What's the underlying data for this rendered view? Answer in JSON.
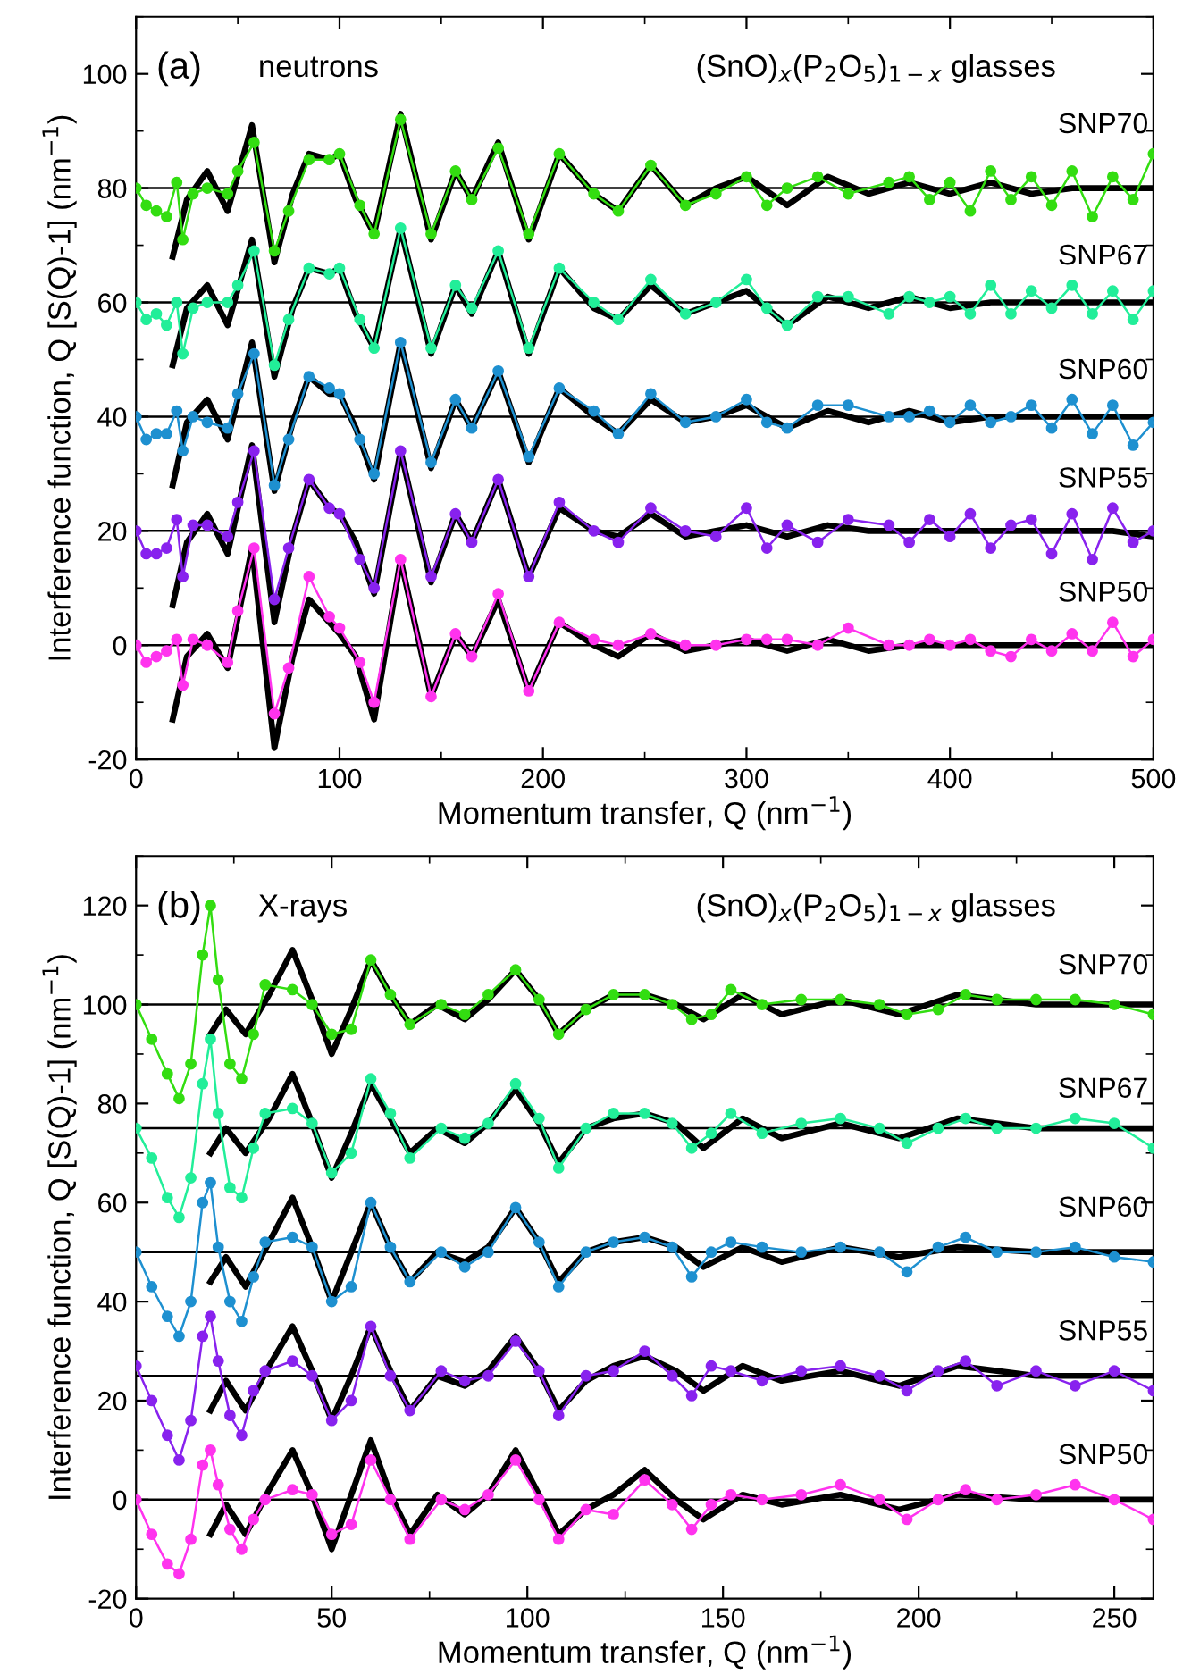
{
  "chart_data": [
    {
      "type": "line",
      "xlabel": "Momentum transfer, Q (nm$^{−1}$)",
      "ylabel": "Interference function, Q [S(Q)-1] (nm$^{−1}$)",
      "annotations": [
        "(a)",
        "neutrons",
        "(SnO)$_{x}$(P$_{2}$O$_{5}$)$_{1−x}$ glasses"
      ],
      "xlim": [
        0,
        500
      ],
      "ylim": [
        -20,
        110
      ],
      "xticks": [
        0,
        100,
        200,
        300,
        400,
        500
      ],
      "yticks": [
        -20,
        0,
        20,
        40,
        60,
        80,
        100
      ],
      "grid": false,
      "legend": false,
      "ref_lines": [
        {
          "axis": "y",
          "value": 80,
          "color": "#000000"
        },
        {
          "axis": "y",
          "value": 60,
          "color": "#000000"
        },
        {
          "axis": "y",
          "value": 40,
          "color": "#000000"
        },
        {
          "axis": "y",
          "value": 20,
          "color": "#000000"
        },
        {
          "axis": "y",
          "value": 0,
          "color": "#000000"
        }
      ],
      "x": [
        0,
        5,
        10,
        15,
        20,
        23,
        28,
        35,
        45,
        50,
        58,
        68,
        75,
        85,
        95,
        100,
        110,
        117,
        130,
        145,
        157,
        165,
        178,
        193,
        208,
        225,
        237,
        253,
        270,
        285,
        300,
        310,
        320,
        335,
        350,
        370,
        380,
        390,
        400,
        410,
        420,
        430,
        440,
        450,
        460,
        470,
        480,
        490,
        500
      ],
      "series": [
        {
          "name": "SNP70",
          "color": "#33dd11",
          "marker": "circle",
          "values": [
            80,
            77,
            76,
            75,
            81,
            71,
            79,
            80,
            79,
            83,
            88,
            69,
            76,
            85,
            85,
            86,
            77,
            72,
            92,
            72,
            83,
            78,
            87,
            72,
            86,
            79,
            76,
            84,
            77,
            79,
            82,
            77,
            80,
            82,
            79,
            81,
            82,
            78,
            81,
            76,
            83,
            78,
            82,
            77,
            83,
            75,
            82,
            78,
            86
          ]
        },
        {
          "name": "SNP67",
          "color": "#22ee99",
          "marker": "circle",
          "values": [
            60,
            57,
            58,
            56,
            60,
            51,
            59,
            60,
            60,
            63,
            69,
            49,
            57,
            66,
            65,
            66,
            57,
            52,
            73,
            52,
            63,
            59,
            69,
            52,
            66,
            60,
            57,
            64,
            58,
            60,
            64,
            59,
            56,
            61,
            61,
            58,
            61,
            60,
            61,
            58,
            63,
            58,
            62,
            59,
            63,
            58,
            62,
            57,
            62
          ]
        },
        {
          "name": "SNP60",
          "color": "#1e90d0",
          "marker": "circle",
          "values": [
            40,
            36,
            37,
            37,
            41,
            34,
            40,
            39,
            38,
            44,
            51,
            28,
            36,
            47,
            45,
            44,
            36,
            30,
            53,
            32,
            43,
            38,
            48,
            33,
            45,
            41,
            37,
            44,
            39,
            40,
            43,
            39,
            38,
            42,
            42,
            40,
            40,
            41,
            39,
            42,
            39,
            40,
            42,
            38,
            43,
            37,
            42,
            35,
            39
          ]
        },
        {
          "name": "SNP55",
          "color": "#8822ee",
          "marker": "circle",
          "values": [
            20,
            16,
            16,
            17,
            22,
            12,
            21,
            21,
            19,
            25,
            34,
            8,
            17,
            29,
            24,
            23,
            15,
            10,
            34,
            12,
            23,
            18,
            29,
            12,
            25,
            20,
            18,
            24,
            20,
            19,
            24,
            17,
            21,
            18,
            22,
            21,
            18,
            22,
            19,
            23,
            17,
            21,
            22,
            16,
            23,
            15,
            24,
            18,
            20
          ]
        },
        {
          "name": "SNP50",
          "color": "#ff33ee",
          "marker": "circle",
          "values": [
            0,
            -3,
            -2,
            -1,
            1,
            -7,
            1,
            0,
            -3,
            6,
            17,
            -12,
            -4,
            12,
            5,
            3,
            -3,
            -10,
            15,
            -9,
            2,
            -2,
            9,
            -8,
            4,
            1,
            0,
            2,
            0,
            0,
            1,
            1,
            1,
            0,
            3,
            0,
            0,
            1,
            0,
            1,
            -1,
            -2,
            1,
            -1,
            2,
            -1,
            4,
            -2,
            1
          ]
        },
        {
          "color": "#000000",
          "marker": "none",
          "x": [
            18,
            25,
            35,
            45,
            57,
            68,
            77,
            85,
            95,
            100,
            108,
            117,
            130,
            145,
            157,
            165,
            178,
            193,
            208,
            225,
            237,
            253,
            270,
            285,
            300,
            320,
            340,
            360,
            380,
            400,
            420,
            440,
            460,
            480,
            500
          ],
          "values": [
            68,
            78,
            83,
            76,
            91,
            67,
            79,
            86,
            85,
            86,
            78,
            72,
            93,
            71,
            83,
            78,
            88,
            71,
            86,
            79,
            76,
            84,
            77,
            80,
            82,
            77,
            82,
            79,
            81,
            79,
            81,
            79,
            80,
            80,
            80
          ]
        },
        {
          "color": "#000000",
          "marker": "none",
          "x": [
            18,
            25,
            35,
            45,
            57,
            68,
            77,
            85,
            95,
            100,
            108,
            117,
            130,
            145,
            157,
            165,
            178,
            193,
            208,
            225,
            237,
            253,
            270,
            285,
            300,
            320,
            340,
            360,
            380,
            400,
            420,
            440,
            460,
            480,
            500
          ],
          "values": [
            49,
            59,
            63,
            56,
            71,
            47,
            59,
            66,
            65,
            66,
            58,
            52,
            73,
            51,
            63,
            58,
            69,
            51,
            66,
            59,
            57,
            63,
            58,
            60,
            62,
            56,
            61,
            59,
            61,
            59,
            60,
            60,
            60,
            60,
            60
          ]
        },
        {
          "color": "#000000",
          "marker": "none",
          "x": [
            18,
            25,
            35,
            45,
            57,
            68,
            77,
            85,
            95,
            100,
            108,
            117,
            130,
            145,
            157,
            165,
            178,
            193,
            208,
            225,
            237,
            253,
            270,
            285,
            300,
            320,
            340,
            360,
            380,
            400,
            420,
            440,
            460,
            480,
            500
          ],
          "values": [
            28,
            39,
            43,
            36,
            53,
            27,
            39,
            47,
            44,
            44,
            38,
            29,
            53,
            31,
            43,
            38,
            48,
            32,
            45,
            40,
            37,
            43,
            39,
            40,
            42,
            38,
            41,
            39,
            41,
            39,
            40,
            40,
            40,
            40,
            40
          ]
        },
        {
          "color": "#000000",
          "marker": "none",
          "x": [
            18,
            25,
            35,
            45,
            57,
            68,
            77,
            85,
            95,
            100,
            108,
            117,
            130,
            145,
            157,
            165,
            178,
            193,
            208,
            225,
            237,
            253,
            270,
            285,
            300,
            320,
            340,
            360,
            380,
            400,
            420,
            440,
            460,
            480,
            500
          ],
          "values": [
            7,
            18,
            23,
            16,
            35,
            4,
            19,
            29,
            24,
            23,
            18,
            9,
            34,
            11,
            23,
            18,
            29,
            12,
            24,
            20,
            19,
            23,
            19,
            20,
            21,
            19,
            21,
            20,
            20,
            20,
            20,
            20,
            20,
            20,
            19
          ]
        },
        {
          "color": "#000000",
          "marker": "none",
          "x": [
            18,
            25,
            35,
            45,
            57,
            68,
            77,
            85,
            95,
            100,
            108,
            117,
            130,
            145,
            157,
            165,
            178,
            193,
            208,
            225,
            237,
            253,
            270,
            285,
            300,
            320,
            340,
            360,
            380,
            400,
            420,
            440,
            460,
            480,
            500
          ],
          "values": [
            -13,
            -2,
            2,
            -4,
            17,
            -18,
            -2,
            8,
            4,
            2,
            -2,
            -13,
            15,
            -9,
            2,
            -2,
            8,
            -8,
            4,
            0,
            -2,
            2,
            -1,
            0,
            1,
            -1,
            1,
            -1,
            0,
            0,
            0,
            0,
            0,
            0,
            0
          ]
        }
      ]
    },
    {
      "type": "line",
      "xlabel": "Momentum transfer, Q (nm$^{−1}$)",
      "ylabel": "Interference function, Q [S(Q)-1] (nm$^{−1}$)",
      "annotations": [
        "(b)",
        "X-rays",
        "(SnO)$_{x}$(P$_{2}$O$_{5}$)$_{1−x}$ glasses"
      ],
      "xlim": [
        0,
        260
      ],
      "ylim": [
        -20,
        130
      ],
      "xticks": [
        0,
        50,
        100,
        150,
        200,
        250
      ],
      "yticks": [
        -20,
        0,
        20,
        40,
        60,
        80,
        100,
        120
      ],
      "grid": false,
      "legend": false,
      "ref_lines": [
        {
          "axis": "y",
          "value": 100,
          "color": "#000000"
        },
        {
          "axis": "y",
          "value": 75,
          "color": "#000000"
        },
        {
          "axis": "y",
          "value": 50,
          "color": "#000000"
        },
        {
          "axis": "y",
          "value": 25,
          "color": "#000000"
        },
        {
          "axis": "y",
          "value": 0,
          "color": "#000000"
        }
      ],
      "x": [
        0,
        4,
        8,
        11,
        14,
        17,
        19,
        21,
        24,
        27,
        30,
        33,
        40,
        45,
        50,
        55,
        60,
        65,
        70,
        78,
        84,
        90,
        97,
        103,
        108,
        115,
        122,
        130,
        137,
        142,
        147,
        152,
        160,
        170,
        180,
        190,
        197,
        205,
        212,
        220,
        230,
        240,
        250,
        260
      ],
      "series": [
        {
          "name": "SNP70",
          "color": "#33dd11",
          "marker": "circle",
          "values": [
            100,
            93,
            86,
            81,
            88,
            110,
            120,
            105,
            88,
            85,
            94,
            104,
            103,
            100,
            94,
            95,
            109,
            102,
            96,
            100,
            98,
            102,
            107,
            101,
            94,
            99,
            102,
            102,
            100,
            97,
            98,
            103,
            100,
            101,
            101,
            100,
            98,
            99,
            102,
            101,
            101,
            101,
            100,
            98
          ]
        },
        {
          "name": "SNP67",
          "color": "#22ee99",
          "marker": "circle",
          "values": [
            75,
            69,
            61,
            57,
            65,
            84,
            93,
            78,
            63,
            61,
            71,
            78,
            79,
            76,
            66,
            70,
            85,
            78,
            69,
            75,
            73,
            76,
            84,
            77,
            67,
            75,
            78,
            78,
            76,
            71,
            74,
            78,
            74,
            76,
            77,
            75,
            72,
            75,
            77,
            75,
            75,
            77,
            76,
            71
          ]
        },
        {
          "name": "SNP60",
          "color": "#1e90d0",
          "marker": "circle",
          "values": [
            50,
            43,
            37,
            33,
            40,
            60,
            64,
            51,
            40,
            36,
            45,
            52,
            53,
            51,
            40,
            43,
            60,
            51,
            44,
            50,
            47,
            50,
            59,
            52,
            43,
            50,
            52,
            53,
            51,
            45,
            50,
            52,
            51,
            50,
            51,
            50,
            46,
            51,
            53,
            50,
            50,
            51,
            49,
            48
          ]
        },
        {
          "name": "SNP55",
          "color": "#8822ee",
          "marker": "circle",
          "values": [
            27,
            20,
            13,
            8,
            16,
            33,
            37,
            28,
            17,
            13,
            22,
            26,
            28,
            25,
            16,
            20,
            35,
            25,
            18,
            26,
            24,
            25,
            32,
            26,
            17,
            25,
            26,
            30,
            25,
            21,
            27,
            26,
            24,
            26,
            27,
            25,
            22,
            26,
            28,
            23,
            26,
            23,
            26,
            22
          ]
        },
        {
          "name": "SNP50",
          "color": "#ff33ee",
          "marker": "circle",
          "values": [
            0,
            -7,
            -13,
            -15,
            -8,
            7,
            10,
            3,
            -6,
            -10,
            -4,
            0,
            2,
            1,
            -7,
            -5,
            8,
            0,
            -8,
            0,
            -2,
            1,
            8,
            0,
            -8,
            -2,
            -3,
            4,
            -1,
            -6,
            -1,
            1,
            0,
            1,
            3,
            0,
            -4,
            0,
            2,
            0,
            1,
            3,
            0,
            -4
          ]
        },
        {
          "color": "#000000",
          "marker": "none",
          "x": [
            19,
            23,
            28,
            34,
            40,
            45,
            50,
            55,
            60,
            65,
            70,
            77,
            84,
            90,
            97,
            103,
            108,
            115,
            122,
            130,
            138,
            145,
            155,
            165,
            180,
            195,
            210,
            230,
            260
          ],
          "values": [
            94,
            99,
            94,
            102,
            111,
            101,
            90,
            99,
            109,
            102,
            96,
            100,
            97,
            101,
            107,
            101,
            94,
            99,
            102,
            102,
            100,
            97,
            102,
            98,
            101,
            98,
            102,
            100,
            100
          ]
        },
        {
          "color": "#000000",
          "marker": "none",
          "x": [
            19,
            23,
            28,
            34,
            40,
            45,
            50,
            55,
            60,
            65,
            70,
            77,
            84,
            90,
            97,
            103,
            108,
            115,
            122,
            130,
            138,
            145,
            155,
            165,
            180,
            195,
            210,
            230,
            260
          ],
          "values": [
            70,
            75,
            70,
            77,
            86,
            76,
            65,
            74,
            84,
            77,
            70,
            75,
            72,
            76,
            83,
            76,
            68,
            75,
            77,
            78,
            76,
            71,
            77,
            73,
            76,
            73,
            77,
            75,
            75
          ]
        },
        {
          "color": "#000000",
          "marker": "none",
          "x": [
            19,
            23,
            28,
            34,
            40,
            45,
            50,
            55,
            60,
            65,
            70,
            77,
            84,
            90,
            97,
            103,
            108,
            115,
            122,
            130,
            138,
            145,
            155,
            165,
            180,
            195,
            210,
            230,
            260
          ],
          "values": [
            44,
            49,
            43,
            52,
            61,
            51,
            40,
            50,
            60,
            51,
            44,
            50,
            48,
            51,
            59,
            52,
            44,
            50,
            52,
            53,
            51,
            47,
            51,
            48,
            51,
            49,
            51,
            50,
            50
          ]
        },
        {
          "color": "#000000",
          "marker": "none",
          "x": [
            19,
            23,
            28,
            34,
            40,
            45,
            50,
            55,
            60,
            65,
            70,
            77,
            84,
            90,
            97,
            103,
            108,
            115,
            122,
            130,
            138,
            145,
            155,
            165,
            180,
            195,
            210,
            230,
            260
          ],
          "values": [
            18,
            24,
            18,
            27,
            35,
            26,
            16,
            25,
            35,
            26,
            18,
            25,
            23,
            26,
            33,
            26,
            18,
            24,
            27,
            29,
            26,
            22,
            27,
            24,
            26,
            23,
            27,
            25,
            25
          ]
        },
        {
          "color": "#000000",
          "marker": "none",
          "x": [
            19,
            23,
            28,
            34,
            40,
            45,
            50,
            55,
            60,
            65,
            70,
            77,
            84,
            90,
            97,
            103,
            108,
            115,
            122,
            130,
            138,
            145,
            155,
            165,
            180,
            195,
            210,
            230,
            260
          ],
          "values": [
            -7,
            -1,
            -7,
            2,
            10,
            1,
            -10,
            1,
            12,
            1,
            -7,
            1,
            -3,
            1,
            10,
            1,
            -7,
            -2,
            1,
            6,
            0,
            -4,
            1,
            -1,
            1,
            -2,
            1,
            0,
            0
          ]
        }
      ]
    }
  ]
}
